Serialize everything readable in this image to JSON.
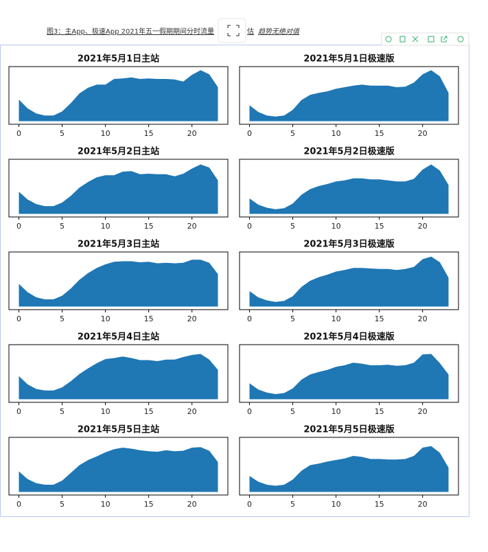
{
  "caption": {
    "text": "图3：主App、极速App 2021年五一假期期间分时流量",
    "tail": "估",
    "note": "趋势无绝对值"
  },
  "chart_data": [
    {
      "type": "area",
      "title": "2021年5月1日主站",
      "color": "#1f77b4",
      "x": [
        0,
        1,
        2,
        3,
        4,
        5,
        6,
        7,
        8,
        9,
        10,
        11,
        12,
        13,
        14,
        15,
        16,
        17,
        18,
        19,
        20,
        21,
        22,
        23
      ],
      "values": [
        42,
        25,
        15,
        11,
        11,
        19,
        35,
        54,
        65,
        71,
        71,
        82,
        83,
        85,
        82,
        83,
        82,
        82,
        81,
        77,
        90,
        99,
        91,
        66
      ],
      "xlim": [
        -1.15,
        24.15
      ],
      "ylim": [
        -6,
        106
      ],
      "xticks": [
        0,
        5,
        10,
        15,
        20
      ]
    },
    {
      "type": "area",
      "title": "2021年5月1日极速版",
      "color": "#1f77b4",
      "x": [
        0,
        1,
        2,
        3,
        4,
        5,
        6,
        7,
        8,
        9,
        10,
        11,
        12,
        13,
        14,
        15,
        16,
        17,
        18,
        19,
        20,
        21,
        22,
        23
      ],
      "values": [
        31,
        18,
        11,
        9,
        11,
        22,
        41,
        51,
        55,
        58,
        63,
        66,
        69,
        71,
        69,
        69,
        69,
        66,
        67,
        75,
        91,
        99,
        87,
        55
      ],
      "xlim": [
        -1.15,
        24.15
      ],
      "ylim": [
        -6,
        106
      ],
      "xticks": [
        0,
        5,
        10,
        15,
        20
      ]
    },
    {
      "type": "area",
      "title": "2021年5月2日主站",
      "color": "#1f77b4",
      "x": [
        0,
        1,
        2,
        3,
        4,
        5,
        6,
        7,
        8,
        9,
        10,
        11,
        12,
        13,
        14,
        15,
        16,
        17,
        18,
        19,
        20,
        21,
        22,
        23
      ],
      "values": [
        43,
        28,
        19,
        15,
        15,
        22,
        35,
        51,
        62,
        71,
        75,
        75,
        82,
        83,
        77,
        78,
        77,
        77,
        73,
        78,
        88,
        96,
        90,
        65
      ],
      "xlim": [
        -1.15,
        24.15
      ],
      "ylim": [
        -6,
        106
      ],
      "xticks": [
        0,
        5,
        10,
        15,
        20
      ]
    },
    {
      "type": "area",
      "title": "2021年5月2日极速版",
      "color": "#1f77b4",
      "x": [
        0,
        1,
        2,
        3,
        4,
        5,
        6,
        7,
        8,
        9,
        10,
        11,
        12,
        13,
        14,
        15,
        16,
        17,
        18,
        19,
        20,
        21,
        22,
        23
      ],
      "values": [
        30,
        18,
        12,
        9,
        11,
        20,
        37,
        48,
        54,
        58,
        63,
        65,
        69,
        69,
        67,
        67,
        65,
        63,
        63,
        68,
        86,
        96,
        84,
        56
      ],
      "xlim": [
        -1.15,
        24.15
      ],
      "ylim": [
        -6,
        106
      ],
      "xticks": [
        0,
        5,
        10,
        15,
        20
      ]
    },
    {
      "type": "area",
      "title": "2021年5月3日主站",
      "color": "#1f77b4",
      "x": [
        0,
        1,
        2,
        3,
        4,
        5,
        6,
        7,
        8,
        9,
        10,
        11,
        12,
        13,
        14,
        15,
        16,
        17,
        18,
        19,
        20,
        21,
        22,
        23
      ],
      "values": [
        44,
        28,
        18,
        14,
        14,
        21,
        35,
        52,
        65,
        75,
        82,
        87,
        88,
        88,
        86,
        87,
        84,
        85,
        84,
        85,
        91,
        91,
        85,
        63
      ],
      "xlim": [
        -1.15,
        24.15
      ],
      "ylim": [
        -6,
        106
      ],
      "xticks": [
        0,
        5,
        10,
        15,
        20
      ]
    },
    {
      "type": "area",
      "title": "2021年5月3日极速版",
      "color": "#1f77b4",
      "x": [
        0,
        1,
        2,
        3,
        4,
        5,
        6,
        7,
        8,
        9,
        10,
        11,
        12,
        13,
        14,
        15,
        16,
        17,
        18,
        19,
        20,
        21,
        22,
        23
      ],
      "values": [
        30,
        18,
        12,
        9,
        11,
        20,
        38,
        50,
        57,
        62,
        68,
        71,
        75,
        75,
        74,
        73,
        73,
        71,
        73,
        77,
        92,
        97,
        86,
        56
      ],
      "xlim": [
        -1.15,
        24.15
      ],
      "ylim": [
        -6,
        106
      ],
      "xticks": [
        0,
        5,
        10,
        15,
        20
      ]
    },
    {
      "type": "area",
      "title": "2021年5月4日主站",
      "color": "#1f77b4",
      "x": [
        0,
        1,
        2,
        3,
        4,
        5,
        6,
        7,
        8,
        9,
        10,
        11,
        12,
        13,
        14,
        15,
        16,
        17,
        18,
        19,
        20,
        21,
        22,
        23
      ],
      "values": [
        45,
        29,
        20,
        17,
        17,
        23,
        35,
        49,
        60,
        70,
        78,
        80,
        83,
        80,
        76,
        76,
        74,
        77,
        77,
        82,
        86,
        88,
        77,
        57
      ],
      "xlim": [
        -1.15,
        24.15
      ],
      "ylim": [
        -6,
        106
      ],
      "xticks": [
        0,
        5,
        10,
        15,
        20
      ]
    },
    {
      "type": "area",
      "title": "2021年5月4日极速版",
      "color": "#1f77b4",
      "x": [
        0,
        1,
        2,
        3,
        4,
        5,
        6,
        7,
        8,
        9,
        10,
        11,
        12,
        13,
        14,
        15,
        16,
        17,
        18,
        19,
        20,
        21,
        22,
        23
      ],
      "values": [
        31,
        19,
        13,
        10,
        12,
        21,
        38,
        48,
        53,
        57,
        63,
        66,
        71,
        69,
        66,
        66,
        67,
        65,
        66,
        71,
        87,
        88,
        70,
        48
      ],
      "xlim": [
        -1.15,
        24.15
      ],
      "ylim": [
        -6,
        106
      ],
      "xticks": [
        0,
        5,
        10,
        15,
        20
      ]
    },
    {
      "type": "area",
      "title": "2021年5月5日主站",
      "color": "#1f77b4",
      "x": [
        0,
        1,
        2,
        3,
        4,
        5,
        6,
        7,
        8,
        9,
        10,
        11,
        12,
        13,
        14,
        15,
        16,
        17,
        18,
        19,
        20,
        21,
        22,
        23
      ],
      "values": [
        40,
        25,
        17,
        14,
        14,
        22,
        37,
        52,
        62,
        69,
        77,
        83,
        86,
        84,
        81,
        79,
        78,
        81,
        79,
        80,
        86,
        87,
        80,
        58
      ],
      "xlim": [
        -1.15,
        24.15
      ],
      "ylim": [
        -6,
        106
      ],
      "xticks": [
        0,
        5,
        10,
        15,
        20
      ]
    },
    {
      "type": "area",
      "title": "2021年5月5日极速版",
      "color": "#1f77b4",
      "x": [
        0,
        1,
        2,
        3,
        4,
        5,
        6,
        7,
        8,
        9,
        10,
        11,
        12,
        13,
        14,
        15,
        16,
        17,
        18,
        19,
        20,
        21,
        22,
        23
      ],
      "values": [
        31,
        20,
        14,
        12,
        14,
        24,
        41,
        52,
        55,
        59,
        62,
        65,
        70,
        68,
        64,
        64,
        63,
        63,
        64,
        70,
        86,
        89,
        76,
        47
      ],
      "xlim": [
        -1.15,
        24.15
      ],
      "ylim": [
        -6,
        106
      ],
      "xticks": [
        0,
        5,
        10,
        15,
        20
      ]
    }
  ]
}
